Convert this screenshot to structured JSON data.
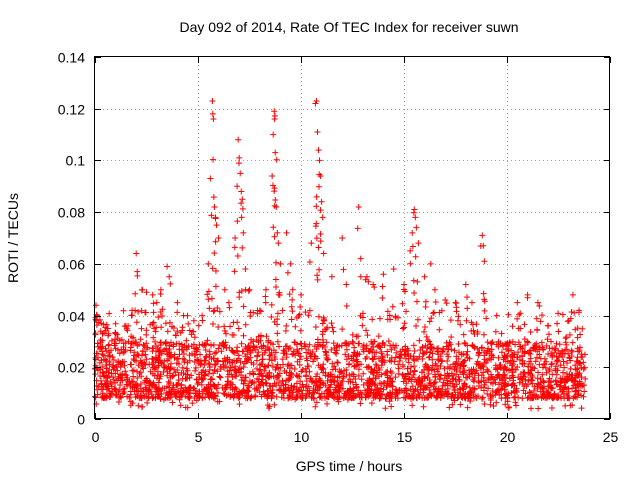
{
  "chart_data": {
    "type": "scatter",
    "title": "Day 092 of 2014, Rate Of TEC Index for receiver suwn",
    "xlabel": "GPS time / hours",
    "ylabel": "ROTI / TECUs",
    "xlim": [
      0,
      25
    ],
    "ylim": [
      0,
      0.14
    ],
    "xticks": [
      0,
      5,
      10,
      15,
      20,
      25
    ],
    "xtick_labels": [
      "0",
      "5",
      "10",
      "15",
      "20",
      "25"
    ],
    "yticks": [
      0,
      0.02,
      0.04,
      0.06,
      0.08,
      0.1,
      0.12,
      0.14
    ],
    "ytick_labels": [
      "0",
      "0.02",
      "0.04",
      "0.06",
      "0.08",
      "0.1",
      "0.12",
      "0.14"
    ],
    "grid": true,
    "marker": "+",
    "color": "#ff0000",
    "series": [
      {
        "name": "ROTI",
        "baseline_min": 0.008,
        "baseline_max": 0.03,
        "x_range": [
          0,
          23.8
        ],
        "points": [
          [
            0.05,
            0.044
          ],
          [
            0.1,
            0.04
          ],
          [
            0.3,
            0.037
          ],
          [
            0.6,
            0.035
          ],
          [
            1.0,
            0.033
          ],
          [
            1.5,
            0.036
          ],
          [
            1.8,
            0.042
          ],
          [
            2.0,
            0.064
          ],
          [
            2.05,
            0.057
          ],
          [
            2.3,
            0.05
          ],
          [
            2.5,
            0.049
          ],
          [
            2.8,
            0.048
          ],
          [
            3.0,
            0.045
          ],
          [
            3.2,
            0.05
          ],
          [
            3.5,
            0.059
          ],
          [
            3.6,
            0.055
          ],
          [
            4.0,
            0.045
          ],
          [
            4.3,
            0.04
          ],
          [
            4.8,
            0.038
          ],
          [
            5.2,
            0.04
          ],
          [
            5.5,
            0.06
          ],
          [
            5.6,
            0.093
          ],
          [
            5.7,
            0.123
          ],
          [
            5.72,
            0.118
          ],
          [
            5.75,
            0.116
          ],
          [
            5.8,
            0.082
          ],
          [
            5.85,
            0.078
          ],
          [
            5.9,
            0.075
          ],
          [
            6.0,
            0.07
          ],
          [
            6.3,
            0.05
          ],
          [
            6.5,
            0.045
          ],
          [
            6.8,
            0.07
          ],
          [
            6.9,
            0.09
          ],
          [
            6.95,
            0.108
          ],
          [
            7.0,
            0.101
          ],
          [
            7.05,
            0.095
          ],
          [
            7.1,
            0.088
          ],
          [
            7.15,
            0.085
          ],
          [
            7.2,
            0.072
          ],
          [
            7.3,
            0.058
          ],
          [
            7.5,
            0.05
          ],
          [
            8.0,
            0.042
          ],
          [
            8.3,
            0.05
          ],
          [
            8.6,
            0.094
          ],
          [
            8.65,
            0.11
          ],
          [
            8.7,
            0.119
          ],
          [
            8.72,
            0.116
          ],
          [
            8.75,
            0.103
          ],
          [
            8.8,
            0.082
          ],
          [
            8.85,
            0.072
          ],
          [
            8.9,
            0.068
          ],
          [
            9.0,
            0.06
          ],
          [
            9.3,
            0.072
          ],
          [
            9.5,
            0.06
          ],
          [
            9.6,
            0.05
          ],
          [
            10.0,
            0.048
          ],
          [
            10.5,
            0.068
          ],
          [
            10.7,
            0.122
          ],
          [
            10.75,
            0.123
          ],
          [
            10.8,
            0.111
          ],
          [
            10.85,
            0.104
          ],
          [
            10.9,
            0.1
          ],
          [
            10.95,
            0.094
          ],
          [
            11.0,
            0.084
          ],
          [
            11.05,
            0.078
          ],
          [
            11.1,
            0.064
          ],
          [
            11.5,
            0.055
          ],
          [
            12.0,
            0.07
          ],
          [
            12.2,
            0.052
          ],
          [
            12.8,
            0.082
          ],
          [
            12.9,
            0.062
          ],
          [
            13.2,
            0.055
          ],
          [
            13.5,
            0.052
          ],
          [
            14.0,
            0.056
          ],
          [
            14.5,
            0.058
          ],
          [
            15.0,
            0.052
          ],
          [
            15.3,
            0.065
          ],
          [
            15.4,
            0.072
          ],
          [
            15.5,
            0.081
          ],
          [
            15.55,
            0.078
          ],
          [
            15.6,
            0.074
          ],
          [
            15.7,
            0.068
          ],
          [
            16.0,
            0.055
          ],
          [
            16.3,
            0.06
          ],
          [
            16.5,
            0.05
          ],
          [
            17.0,
            0.046
          ],
          [
            17.5,
            0.045
          ],
          [
            18.0,
            0.052
          ],
          [
            18.3,
            0.045
          ],
          [
            18.8,
            0.071
          ],
          [
            18.85,
            0.067
          ],
          [
            18.9,
            0.061
          ],
          [
            19.5,
            0.04
          ],
          [
            20.5,
            0.045
          ],
          [
            21.0,
            0.048
          ],
          [
            21.5,
            0.045
          ],
          [
            22.0,
            0.036
          ],
          [
            23.0,
            0.038
          ],
          [
            23.2,
            0.048
          ],
          [
            23.5,
            0.042
          ]
        ]
      }
    ]
  }
}
